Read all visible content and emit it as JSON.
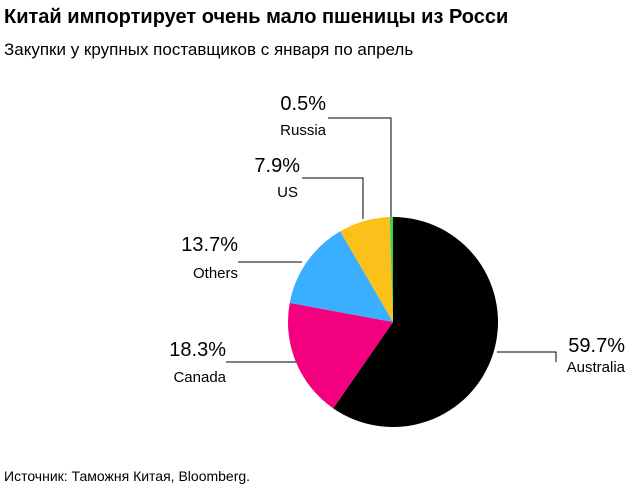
{
  "header": {
    "title": "Китай импортирует очень мало пшеницы из Росси",
    "subtitle": "Закупки у крупных поставщиков с января по апрель"
  },
  "footer": {
    "source": "Источник: Таможня Китая, Bloomberg."
  },
  "chart_data": {
    "type": "pie",
    "title": "Китай импортирует очень мало пшеницы из Росси",
    "subtitle": "Закупки у крупных поставщиков с января по апрель",
    "slices": [
      {
        "name": "Australia",
        "value": 59.7,
        "pct_label": "59.7%",
        "color": "#000000"
      },
      {
        "name": "Canada",
        "value": 18.3,
        "pct_label": "18.3%",
        "color": "#f2007e"
      },
      {
        "name": "Others",
        "value": 13.7,
        "pct_label": "13.7%",
        "color": "#3aaeff"
      },
      {
        "name": "US",
        "value": 7.9,
        "pct_label": "7.9%",
        "color": "#fbc11a"
      },
      {
        "name": "Russia",
        "value": 0.5,
        "pct_label": "0.5%",
        "color": "#3fcf5a"
      }
    ]
  }
}
